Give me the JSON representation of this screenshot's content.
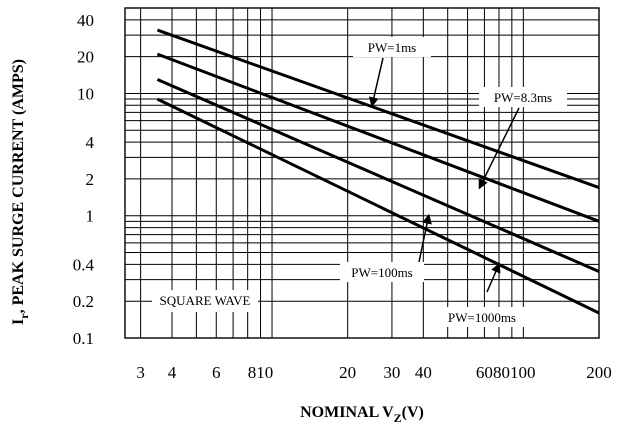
{
  "chart_data": {
    "type": "line",
    "xlabel_main": "NOMINAL V",
    "xlabel_sub": "Z",
    "xlabel_tail": "(V)",
    "ylabel_main": "I",
    "ylabel_sub": "r",
    "ylabel_tail": ", PEAK SURGE CURRENT (AMPS)",
    "x_scale": "log",
    "y_scale": "log",
    "xlim": [
      2.6,
      200
    ],
    "ylim": [
      0.1,
      50
    ],
    "grid": true,
    "x_ticks": [
      "3",
      "4",
      "6",
      "810",
      "20",
      "30",
      "40",
      "60",
      "80100",
      "200"
    ],
    "y_ticks": [
      {
        "label": "40",
        "value": 40
      },
      {
        "label": "20",
        "value": 20
      },
      {
        "label": "10",
        "value": 10
      },
      {
        "label": "4",
        "value": 4
      },
      {
        "label": "2",
        "value": 2
      },
      {
        "label": "1",
        "value": 1
      },
      {
        "label": "0.4",
        "value": 0.4
      },
      {
        "label": "0.2",
        "value": 0.2
      },
      {
        "label": "0.1",
        "value": 0.1
      }
    ],
    "series": [
      {
        "name": "PW=1ms",
        "x": [
          3.5,
          200
        ],
        "y": [
          33,
          1.7
        ]
      },
      {
        "name": "PW=8.3ms",
        "x": [
          3.5,
          200
        ],
        "y": [
          21,
          0.9
        ]
      },
      {
        "name": "PW=100ms",
        "x": [
          3.5,
          200
        ],
        "y": [
          13,
          0.35
        ]
      },
      {
        "name": "PW=1000ms",
        "x": [
          3.5,
          200
        ],
        "y": [
          9,
          0.16
        ]
      }
    ],
    "annotations": [
      {
        "text": "PW=1ms",
        "arrow_to": [
          25,
          8
        ]
      },
      {
        "text": "PW=8.3ms",
        "arrow_to": [
          67,
          1.7
        ]
      },
      {
        "text": "PW=100ms",
        "arrow_to": [
          42,
          1.0
        ]
      },
      {
        "text": "PW=1000ms",
        "arrow_to": [
          80,
          0.4
        ]
      },
      {
        "text": "SQUARE WAVE"
      }
    ]
  }
}
